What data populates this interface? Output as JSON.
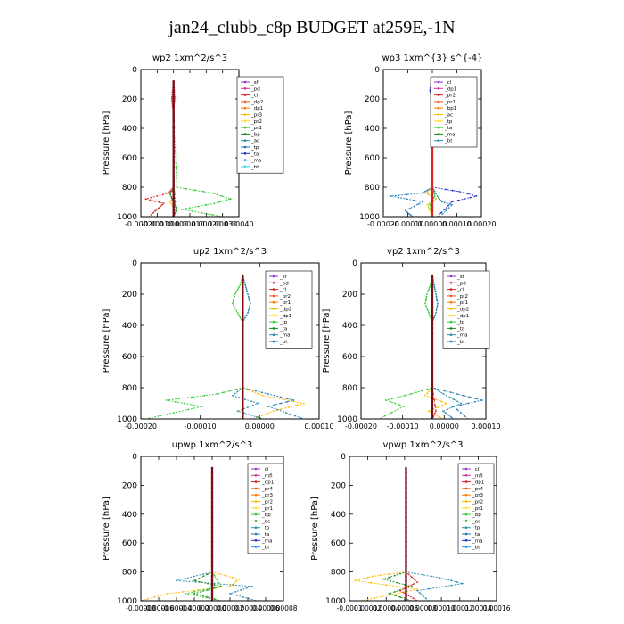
{
  "title": "jan24_clubb_c8p  BUDGET at259E,-1N",
  "chart_data": [
    {
      "type": "line",
      "title": "wp2   1xm^2/s^3",
      "ylabel": "Pressure [hPa]",
      "ylim": [
        1000,
        0
      ],
      "xlim": [
        -0.0002,
        0.0004
      ],
      "xticks": [
        "-0.00020",
        "-0.00010",
        "0.00000",
        "0.00010",
        "0.00020",
        "0.00030",
        "0.00040"
      ],
      "yticks": [
        "0",
        "200",
        "400",
        "600",
        "800",
        "1000"
      ],
      "legend": [
        "_sf",
        "_pd",
        "_cl",
        "_dp2",
        "_dp1",
        "_pr3",
        "_pr2",
        "_pr1",
        "_bp",
        "_ac",
        "_tp",
        "_ta",
        "_ma",
        "_bt"
      ],
      "series": [
        {
          "name": "_dp1",
          "color": "#dd2222",
          "x": [
            0,
            -5e-06,
            -1e-05,
            -5e-06,
            0,
            -3e-05,
            -0.00017,
            -6e-05,
            -0.0001,
            -0.00015
          ],
          "y": [
            80,
            140,
            200,
            260,
            800,
            840,
            880,
            910,
            950,
            1000
          ]
        },
        {
          "name": "_pr1",
          "color": "#33cc33",
          "x": [
            0,
            5e-06,
            1e-05,
            0,
            2e-05,
            0.00024,
            0.00035,
            0.00025,
            5e-05,
            0.0003
          ],
          "y": [
            80,
            140,
            200,
            260,
            800,
            840,
            880,
            910,
            950,
            1000
          ]
        },
        {
          "name": "_pr2",
          "color": "#ffbb00",
          "x": [
            0,
            5e-06,
            0,
            1e-05,
            -2e-05,
            1e-05,
            0
          ],
          "y": [
            80,
            200,
            800,
            850,
            900,
            950,
            1000
          ]
        },
        {
          "name": "_bp",
          "color": "#1a8a1a",
          "x": [
            0,
            0,
            -2e-05,
            0,
            2e-05,
            0
          ],
          "y": [
            80,
            800,
            850,
            900,
            950,
            1000
          ]
        },
        {
          "name": "_sf",
          "color": "#9933cc",
          "x": [
            0,
            0,
            0,
            0
          ],
          "y": [
            80,
            500,
            900,
            1000
          ]
        },
        {
          "name": "_ta",
          "color": "#1f77b4",
          "x": [
            0,
            0,
            1e-05,
            0
          ],
          "y": [
            80,
            800,
            900,
            1000
          ]
        },
        {
          "name": "_cl",
          "color": "#7a1010",
          "x": [
            0,
            0,
            0,
            0
          ],
          "y": [
            80,
            500,
            900,
            1000
          ]
        }
      ]
    },
    {
      "type": "line",
      "title": "wp3   1xm^{3} s^{-4}",
      "ylabel": "Pressure [hPa]",
      "ylim": [
        1000,
        0
      ],
      "xlim": [
        -0.0002,
        0.0002
      ],
      "xticks": [
        "-0.00020",
        "-0.00010",
        "0.00000",
        "0.00010",
        "0.00020"
      ],
      "yticks": [
        "0",
        "200",
        "400",
        "600",
        "800",
        "1000"
      ],
      "legend": [
        "_cl",
        "_dp1",
        "_pr2",
        "_pr1",
        "_bp1",
        "_ac",
        "_tp",
        "_ta",
        "_ma",
        "_bt"
      ],
      "series": [
        {
          "name": "_tp",
          "color": "#1f77b4",
          "x": [
            0,
            4e-06,
            0,
            0,
            -4e-05,
            -0.00017,
            -4e-05,
            -0.00011,
            -8e-05
          ],
          "y": [
            80,
            140,
            180,
            800,
            840,
            860,
            900,
            960,
            1000
          ]
        },
        {
          "name": "_ta",
          "color": "#1e2fc8",
          "x": [
            0,
            -1e-05,
            0,
            0,
            0.00011,
            0.00018,
            8e-05,
            2e-05
          ],
          "y": [
            80,
            140,
            200,
            800,
            830,
            860,
            900,
            1000
          ]
        },
        {
          "name": "_ac",
          "color": "#2a8fb0",
          "x": [
            0,
            0,
            2e-05,
            4e-05,
            8e-05,
            3e-05
          ],
          "y": [
            80,
            800,
            860,
            900,
            920,
            1000
          ]
        },
        {
          "name": "_pr2",
          "color": "#ffbb00",
          "x": [
            0,
            0,
            -2.5e-05,
            1.5e-05,
            -2e-05,
            0
          ],
          "y": [
            80,
            800,
            840,
            880,
            920,
            1000
          ]
        },
        {
          "name": "_pr1",
          "color": "#33cc33",
          "x": [
            0,
            0,
            1e-05,
            -1e-05,
            0
          ],
          "y": [
            80,
            800,
            860,
            920,
            1000
          ]
        },
        {
          "name": "_cl",
          "color": "#dd2222",
          "x": [
            0,
            0,
            0,
            0
          ],
          "y": [
            80,
            500,
            900,
            1000
          ]
        }
      ]
    },
    {
      "type": "line",
      "title": "up2   1xm^2/s^3",
      "ylabel": "Pressure [hPa]",
      "ylim": [
        1000,
        0
      ],
      "xlim": [
        -0.0002,
        0.00015
      ],
      "xticks": [
        "-0.00020",
        "-0.00010",
        "0.00000",
        "0.00010"
      ],
      "yticks": [
        "0",
        "200",
        "400",
        "600",
        "800",
        "1000"
      ],
      "legend": [
        "_sf",
        "_pd",
        "_cl",
        "_pr2",
        "_pr1",
        "_dp2",
        "_dp1",
        "_tp",
        "_ta",
        "_ma",
        "_bt"
      ],
      "series": [
        {
          "name": "_dp1",
          "color": "#33cc33",
          "x": [
            0,
            -5e-06,
            -1.5e-05,
            -2e-05,
            -1e-05,
            0,
            0,
            -5e-05,
            -0.00015,
            -8e-05,
            -0.00019
          ],
          "y": [
            80,
            140,
            200,
            260,
            320,
            380,
            800,
            840,
            880,
            920,
            1000
          ]
        },
        {
          "name": "_tp",
          "color": "#1f77b4",
          "x": [
            0,
            5e-06,
            1e-05,
            1.5e-05,
            1e-05,
            0,
            0,
            5e-05,
            0.0001,
            5e-05,
            0.00012
          ],
          "y": [
            80,
            140,
            200,
            260,
            320,
            380,
            800,
            840,
            880,
            920,
            1000
          ]
        },
        {
          "name": "_pr1",
          "color": "#ffbb00",
          "x": [
            0,
            0,
            4e-05,
            0.00012,
            6e-05,
            2e-05
          ],
          "y": [
            80,
            800,
            850,
            900,
            950,
            1000
          ]
        },
        {
          "name": "_ta",
          "color": "#2a8fb0",
          "x": [
            0,
            0,
            -2e-05,
            3e-05,
            -1e-05,
            4e-05
          ],
          "y": [
            80,
            800,
            850,
            900,
            950,
            1000
          ]
        },
        {
          "name": "_pd",
          "color": "#9933cc",
          "x": [
            0,
            0,
            0,
            0
          ],
          "y": [
            80,
            500,
            900,
            1000
          ]
        },
        {
          "name": "_cl",
          "color": "#7a1010",
          "x": [
            0,
            0,
            0,
            0
          ],
          "y": [
            80,
            500,
            900,
            1000
          ]
        }
      ]
    },
    {
      "type": "line",
      "title": "vp2   1xm^2/s^3",
      "ylabel": "Pressure [hPa]",
      "ylim": [
        1000,
        0
      ],
      "xlim": [
        -0.0002,
        0.00015
      ],
      "xticks": [
        "-0.00020",
        "-0.00010",
        "0.00000",
        "0.00010"
      ],
      "yticks": [
        "0",
        "200",
        "400",
        "600",
        "800",
        "1000"
      ],
      "legend": [
        "_sf",
        "_pd",
        "_cl",
        "_pr2",
        "_pr1",
        "_dp2",
        "_dp1",
        "_tp",
        "_ta",
        "_ma",
        "_bt"
      ],
      "series": [
        {
          "name": "_dp1",
          "color": "#33cc33",
          "x": [
            0,
            -5e-06,
            -1.5e-05,
            -2e-05,
            -1e-05,
            0,
            0,
            -6e-05,
            -0.00013,
            -8e-05,
            -0.00015
          ],
          "y": [
            80,
            140,
            200,
            260,
            320,
            380,
            800,
            840,
            880,
            920,
            1000
          ]
        },
        {
          "name": "_tp",
          "color": "#1f77b4",
          "x": [
            0,
            5e-06,
            1e-05,
            1.5e-05,
            1e-05,
            0,
            0,
            7e-05,
            0.00014,
            6e-05,
            0.0001
          ],
          "y": [
            80,
            140,
            200,
            260,
            320,
            380,
            800,
            840,
            880,
            920,
            1000
          ]
        },
        {
          "name": "_pr1",
          "color": "#ffbb00",
          "x": [
            0,
            0,
            -2e-05,
            4e-05,
            -1e-05,
            3e-05
          ],
          "y": [
            80,
            800,
            850,
            900,
            950,
            1000
          ]
        },
        {
          "name": "_ta",
          "color": "#2a8fb0",
          "x": [
            0,
            0,
            4e-05,
            8e-05,
            3e-05,
            6e-05
          ],
          "y": [
            80,
            800,
            850,
            900,
            950,
            1000
          ]
        },
        {
          "name": "_sf",
          "color": "#dd2222",
          "x": [
            0,
            0,
            1e-05,
            0
          ],
          "y": [
            80,
            800,
            950,
            1000
          ]
        },
        {
          "name": "_cl",
          "color": "#7a1010",
          "x": [
            0,
            0,
            0,
            0
          ],
          "y": [
            80,
            500,
            900,
            1000
          ]
        }
      ]
    },
    {
      "type": "line",
      "title": "upwp   1xm^2/s^3",
      "ylabel": "Pressure [hPa]",
      "ylim": [
        1000,
        0
      ],
      "xlim": [
        -8e-05,
        8e-05
      ],
      "xticks": [
        "-0.00008",
        "-0.00006",
        "-0.00004",
        "-0.00002",
        "0.00000",
        "0.00002",
        "0.00004",
        "0.00006",
        "0.00008"
      ],
      "yticks": [
        "0",
        "200",
        "400",
        "600",
        "800",
        "1000"
      ],
      "legend": [
        "_cl",
        "_mfl",
        "_dp1",
        "_pr4",
        "_pr3",
        "_pr2",
        "_pr1",
        "_bp",
        "_ac",
        "_tp",
        "_ta",
        "_ma",
        "_bt"
      ],
      "series": [
        {
          "name": "_pr1",
          "color": "#ffbb00",
          "x": [
            0,
            0,
            3e-05,
            2e-05,
            -5e-05,
            -8e-05
          ],
          "y": [
            80,
            800,
            850,
            900,
            950,
            1000
          ]
        },
        {
          "name": "_tp",
          "color": "#2a8fb0",
          "x": [
            0,
            0,
            -4e-05,
            4.5e-05,
            2e-05,
            5e-05
          ],
          "y": [
            80,
            800,
            860,
            900,
            950,
            1000
          ]
        },
        {
          "name": "_bp",
          "color": "#1a8a1a",
          "x": [
            0,
            0,
            -2e-05,
            1e-05,
            -2e-05,
            1e-05
          ],
          "y": [
            80,
            800,
            860,
            900,
            950,
            1000
          ]
        },
        {
          "name": "_ac",
          "color": "#33cc33",
          "x": [
            0,
            0,
            1e-05,
            -3e-05,
            1e-05
          ],
          "y": [
            80,
            800,
            900,
            950,
            1000
          ]
        },
        {
          "name": "_mfl",
          "color": "#9933cc",
          "x": [
            0,
            0,
            0,
            0
          ],
          "y": [
            80,
            500,
            900,
            1000
          ]
        },
        {
          "name": "_cl",
          "color": "#7a1010",
          "x": [
            0,
            0,
            0,
            0
          ],
          "y": [
            80,
            500,
            900,
            1000
          ]
        }
      ]
    },
    {
      "type": "line",
      "title": "vpwp   1xm^2/s^3",
      "ylabel": "Pressure [hPa]",
      "ylim": [
        1000,
        0
      ],
      "xlim": [
        -0.0001,
        0.00016
      ],
      "xticks": [
        "-0.0001",
        "0.00002",
        "0.00004",
        "0.00006",
        "0.00008",
        "0.00010",
        "0.00012",
        "0.00014",
        "0.00016"
      ],
      "yticks": [
        "0",
        "200",
        "400",
        "600",
        "800",
        "1000"
      ],
      "legend": [
        "_cl",
        "_mfl",
        "_dp1",
        "_pr4",
        "_pr3",
        "_pr2",
        "_pr1",
        "_bp",
        "_ac",
        "_tp",
        "_ta",
        "_ma",
        "_bt"
      ],
      "series": [
        {
          "name": "_pr1",
          "color": "#ffbb00",
          "x": [
            0,
            0,
            -6e-05,
            -9e-05,
            2e-05,
            -8e-05
          ],
          "y": [
            80,
            800,
            830,
            860,
            920,
            1000
          ]
        },
        {
          "name": "_tp",
          "color": "#2a8fb0",
          "x": [
            0,
            0,
            6e-05,
            0.0001,
            2e-05,
            4e-05
          ],
          "y": [
            80,
            800,
            840,
            880,
            930,
            1000
          ]
        },
        {
          "name": "_bp",
          "color": "#1a8a1a",
          "x": [
            0,
            0,
            -4e-05,
            1e-05,
            -3e-05,
            1e-05
          ],
          "y": [
            80,
            800,
            850,
            900,
            950,
            1000
          ]
        },
        {
          "name": "_dp1",
          "color": "#dd2222",
          "x": [
            0,
            0,
            2e-05,
            -1e-05,
            2e-05
          ],
          "y": [
            80,
            800,
            870,
            930,
            1000
          ]
        },
        {
          "name": "_mfl",
          "color": "#9933cc",
          "x": [
            0,
            0,
            0,
            0
          ],
          "y": [
            80,
            500,
            900,
            1000
          ]
        },
        {
          "name": "_cl",
          "color": "#7a1010",
          "x": [
            0,
            0,
            0,
            0
          ],
          "y": [
            80,
            500,
            900,
            1000
          ]
        }
      ]
    }
  ]
}
